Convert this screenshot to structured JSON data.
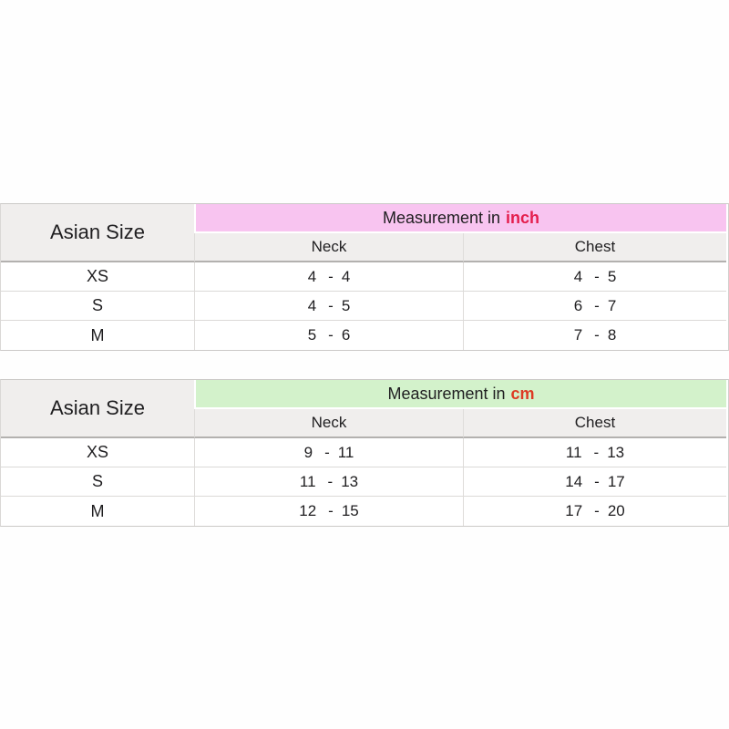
{
  "page": {
    "background": "#fefefe"
  },
  "colors": {
    "inch_band_bg": "#f8c4f0",
    "cm_band_bg": "#d3f2cb",
    "header_cell_bg": "#f0eeed",
    "inch_unit_color": "#e41e4d",
    "cm_unit_color": "#dd3b24",
    "text_color": "#1f1e20",
    "header_separator": "#b3b1af",
    "row_line": "#dbd9d7"
  },
  "dash": "-",
  "tables": [
    {
      "corner_label": "Asian Size",
      "band_prefix": "Measurement in",
      "band_unit": "inch",
      "col_headers": [
        "Neck",
        "Chest"
      ],
      "rows": [
        {
          "size": "XS",
          "neck": {
            "min": "4",
            "max": "4"
          },
          "chest": {
            "min": "4",
            "max": "5"
          }
        },
        {
          "size": "S",
          "neck": {
            "min": "4",
            "max": "5"
          },
          "chest": {
            "min": "6",
            "max": "7"
          }
        },
        {
          "size": "M",
          "neck": {
            "min": "5",
            "max": "6"
          },
          "chest": {
            "min": "7",
            "max": "8"
          }
        }
      ]
    },
    {
      "corner_label": "Asian Size",
      "band_prefix": "Measurement in",
      "band_unit": "cm",
      "col_headers": [
        "Neck",
        "Chest"
      ],
      "rows": [
        {
          "size": "XS",
          "neck": {
            "min": "9",
            "max": "11"
          },
          "chest": {
            "min": "11",
            "max": "13"
          }
        },
        {
          "size": "S",
          "neck": {
            "min": "11",
            "max": "13"
          },
          "chest": {
            "min": "14",
            "max": "17"
          }
        },
        {
          "size": "M",
          "neck": {
            "min": "12",
            "max": "15"
          },
          "chest": {
            "min": "17",
            "max": "20"
          }
        }
      ]
    }
  ],
  "chart_data": [
    {
      "type": "table",
      "title": "Measurement in inch",
      "columns": [
        "Asian Size",
        "Neck",
        "Chest"
      ],
      "rows": [
        [
          "XS",
          "4 - 4",
          "4 - 5"
        ],
        [
          "S",
          "4 - 5",
          "6 - 7"
        ],
        [
          "M",
          "5 - 6",
          "7 - 8"
        ]
      ]
    },
    {
      "type": "table",
      "title": "Measurement in cm",
      "columns": [
        "Asian Size",
        "Neck",
        "Chest"
      ],
      "rows": [
        [
          "XS",
          "9 - 11",
          "11 - 13"
        ],
        [
          "S",
          "11 - 13",
          "14 - 17"
        ],
        [
          "M",
          "12 - 15",
          "17 - 20"
        ]
      ]
    }
  ]
}
